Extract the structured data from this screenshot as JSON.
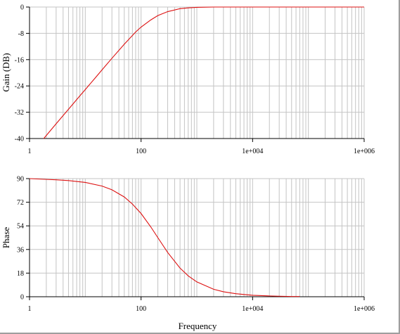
{
  "chart_data": [
    {
      "type": "line",
      "xlabel": "",
      "ylabel": "Gain (DB)",
      "xscale": "log",
      "xlim": [
        1,
        1000000
      ],
      "ylim": [
        -40,
        0
      ],
      "xticks": [
        "1",
        "100",
        "1e+004",
        "1e+006"
      ],
      "yticks": [
        "0",
        "-8",
        "-16",
        "-24",
        "-32",
        "-40"
      ],
      "grid": true,
      "line_color": "#dd1111",
      "series": [
        {
          "x": [
            1.8,
            3,
            5,
            8,
            10,
            15,
            20,
            30,
            50,
            80,
            100,
            150,
            200,
            300,
            500,
            700,
            1000,
            2000,
            5000,
            10000,
            100000,
            1000000
          ],
          "y": [
            -40,
            -35.5,
            -31.1,
            -27,
            -25.1,
            -21.6,
            -19.1,
            -15.6,
            -11.3,
            -7.6,
            -6.1,
            -3.9,
            -2.6,
            -1.4,
            -0.5,
            -0.25,
            -0.1,
            0,
            0,
            0,
            0,
            0
          ]
        }
      ]
    },
    {
      "type": "line",
      "xlabel": "Frequency",
      "ylabel": "Phase",
      "xscale": "log",
      "xlim": [
        1,
        1000000
      ],
      "ylim": [
        0,
        90
      ],
      "xticks": [
        "1",
        "100",
        "1e+004",
        "1e+006"
      ],
      "yticks": [
        "90",
        "72",
        "54",
        "36",
        "18",
        "0"
      ],
      "grid": true,
      "line_color": "#dd1111",
      "series": [
        {
          "x": [
            1,
            2,
            3,
            5,
            10,
            20,
            30,
            50,
            70,
            100,
            150,
            200,
            300,
            500,
            700,
            1000,
            2000,
            3000,
            5000,
            10000,
            20000,
            30000,
            50000,
            70000
          ],
          "y": [
            90,
            89.4,
            89.1,
            88.5,
            87.1,
            84.3,
            81.5,
            76,
            70.6,
            63.4,
            53.1,
            45,
            33.7,
            21.8,
            15.9,
            11.3,
            5.7,
            3.8,
            2.3,
            1.1,
            0.6,
            0.4,
            0.2,
            0.2
          ]
        }
      ]
    }
  ]
}
